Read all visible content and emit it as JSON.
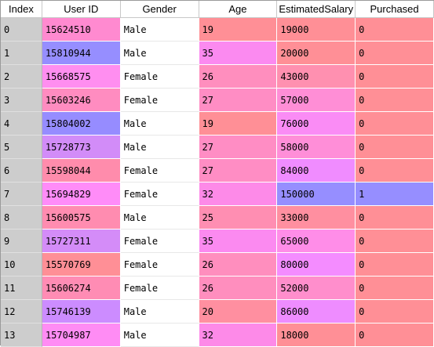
{
  "columns": {
    "index": "Index",
    "user_id": "User ID",
    "gender": "Gender",
    "age": "Age",
    "salary": "EstimatedSalary",
    "purchased": "Purchased"
  },
  "rows": [
    {
      "index": "0",
      "user_id": "15624510",
      "gender": "Male",
      "age": "19",
      "salary": "19000",
      "purchased": "0",
      "colors": {
        "user_id": "#ff8ad0",
        "age": "#ff8f96",
        "salary": "#ff8f96",
        "purchased": "#ff8f96"
      }
    },
    {
      "index": "1",
      "user_id": "15810944",
      "gender": "Male",
      "age": "35",
      "salary": "20000",
      "purchased": "0",
      "colors": {
        "user_id": "#968eff",
        "age": "#fb8af0",
        "salary": "#ff8f96",
        "purchased": "#ff8f96"
      }
    },
    {
      "index": "2",
      "user_id": "15668575",
      "gender": "Female",
      "age": "26",
      "salary": "43000",
      "purchased": "0",
      "colors": {
        "user_id": "#ff8ef0",
        "age": "#ff8ebe",
        "salary": "#ff90b0",
        "purchased": "#ff8f96"
      }
    },
    {
      "index": "3",
      "user_id": "15603246",
      "gender": "Female",
      "age": "27",
      "salary": "57000",
      "purchased": "0",
      "colors": {
        "user_id": "#ff8cc0",
        "age": "#ff8dc4",
        "salary": "#ff8ed6",
        "purchased": "#ff8f96"
      }
    },
    {
      "index": "4",
      "user_id": "15804002",
      "gender": "Male",
      "age": "19",
      "salary": "76000",
      "purchased": "0",
      "colors": {
        "user_id": "#968cff",
        "age": "#ff8f96",
        "salary": "#fa8cf5",
        "purchased": "#ff8f96"
      }
    },
    {
      "index": "5",
      "user_id": "15728773",
      "gender": "Male",
      "age": "27",
      "salary": "58000",
      "purchased": "0",
      "colors": {
        "user_id": "#d28cf8",
        "age": "#ff8dc4",
        "salary": "#ff8ed8",
        "purchased": "#ff8f96"
      }
    },
    {
      "index": "6",
      "user_id": "15598044",
      "gender": "Female",
      "age": "27",
      "salary": "84000",
      "purchased": "0",
      "colors": {
        "user_id": "#ff8cac",
        "age": "#ff8dc4",
        "salary": "#f08cff",
        "purchased": "#ff8f96"
      }
    },
    {
      "index": "7",
      "user_id": "15694829",
      "gender": "Female",
      "age": "32",
      "salary": "150000",
      "purchased": "1",
      "colors": {
        "user_id": "#ff8cf8",
        "age": "#fd8ae8",
        "salary": "#968eff",
        "purchased": "#968eff"
      }
    },
    {
      "index": "8",
      "user_id": "15600575",
      "gender": "Male",
      "age": "25",
      "salary": "33000",
      "purchased": "0",
      "colors": {
        "user_id": "#ff8cb0",
        "age": "#ff8eb2",
        "salary": "#ff8fa0",
        "purchased": "#ff8f96"
      }
    },
    {
      "index": "9",
      "user_id": "15727311",
      "gender": "Female",
      "age": "35",
      "salary": "65000",
      "purchased": "0",
      "colors": {
        "user_id": "#d48cf8",
        "age": "#fb8af0",
        "salary": "#ff8de8",
        "purchased": "#ff8f96"
      }
    },
    {
      "index": "10",
      "user_id": "15570769",
      "gender": "Female",
      "age": "26",
      "salary": "80000",
      "purchased": "0",
      "colors": {
        "user_id": "#ff8f96",
        "age": "#ff8ebe",
        "salary": "#f48cff",
        "purchased": "#ff8f96"
      }
    },
    {
      "index": "11",
      "user_id": "15606274",
      "gender": "Female",
      "age": "26",
      "salary": "52000",
      "purchased": "0",
      "colors": {
        "user_id": "#ff8cb4",
        "age": "#ff8ebe",
        "salary": "#ff8ecc",
        "purchased": "#ff8f96"
      }
    },
    {
      "index": "12",
      "user_id": "15746139",
      "gender": "Male",
      "age": "20",
      "salary": "86000",
      "purchased": "0",
      "colors": {
        "user_id": "#cc8cff",
        "age": "#ff8fa0",
        "salary": "#ee8cff",
        "purchased": "#ff8f96"
      }
    },
    {
      "index": "13",
      "user_id": "15704987",
      "gender": "Male",
      "age": "32",
      "salary": "18000",
      "purchased": "0",
      "colors": {
        "user_id": "#ff8cf4",
        "age": "#fd8ae8",
        "salary": "#ff8f96",
        "purchased": "#ff8f96"
      }
    }
  ]
}
